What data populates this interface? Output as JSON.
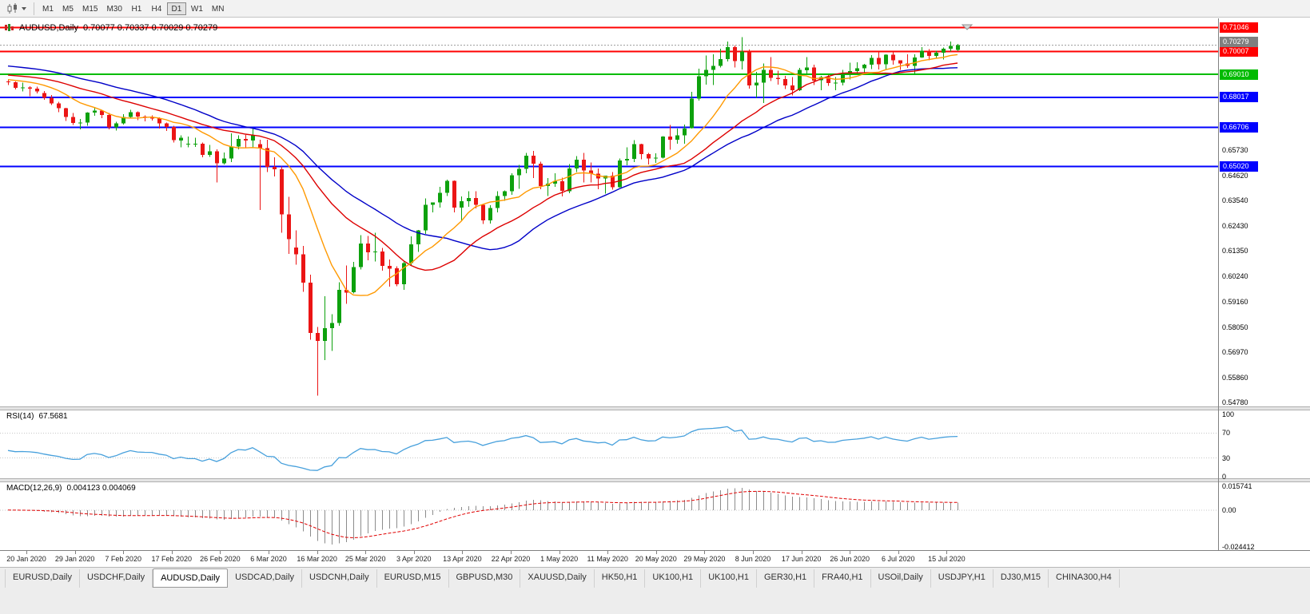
{
  "toolbar": {
    "timeframes": [
      "M1",
      "M5",
      "M15",
      "M30",
      "H1",
      "H4",
      "D1",
      "W1",
      "MN"
    ],
    "selected": "D1"
  },
  "window": {
    "title": "AUDUSD,Daily",
    "ohlc": "0.70077 0.70337 0.70029 0.70279"
  },
  "chart_data": {
    "type": "candlestick",
    "symbol": "AUDUSD",
    "timeframe": "Daily",
    "price_axis": {
      "min": 0.5457,
      "max": 0.7127,
      "plain_labels": [
        "0.65730",
        "0.64620",
        "0.63540",
        "0.62430",
        "0.61350",
        "0.60240",
        "0.59160",
        "0.58050",
        "0.56970",
        "0.55860",
        "0.54780"
      ]
    },
    "x_labels": [
      "20 Jan 2020",
      "29 Jan 2020",
      "7 Feb 2020",
      "17 Feb 2020",
      "26 Feb 2020",
      "6 Mar 2020",
      "16 Mar 2020",
      "25 Mar 2020",
      "3 Apr 2020",
      "13 Apr 2020",
      "22 Apr 2020",
      "1 May 2020",
      "11 May 2020",
      "20 May 2020",
      "29 May 2020",
      "8 Jun 2020",
      "17 Jun 2020",
      "26 Jun 2020",
      "6 Jul 2020",
      "15 Jul 2020"
    ],
    "colors": {
      "bull": "#0DA10D",
      "bear": "#EB1515"
    },
    "candles": [
      [
        0.6871,
        0.6879,
        0.6855,
        0.6867
      ],
      [
        0.6867,
        0.687,
        0.6836,
        0.6843
      ],
      [
        0.6843,
        0.6866,
        0.6828,
        0.6845
      ],
      [
        0.6845,
        0.685,
        0.6807,
        0.6839
      ],
      [
        0.6839,
        0.6848,
        0.6818,
        0.6827
      ],
      [
        0.682,
        0.6829,
        0.6791,
        0.68
      ],
      [
        0.68,
        0.6812,
        0.6769,
        0.6776
      ],
      [
        0.6776,
        0.6782,
        0.6737,
        0.6755
      ],
      [
        0.6755,
        0.6757,
        0.6699,
        0.6716
      ],
      [
        0.6716,
        0.6733,
        0.6682,
        0.669
      ],
      [
        0.669,
        0.6707,
        0.6663,
        0.6692
      ],
      [
        0.6692,
        0.6738,
        0.6678,
        0.6735
      ],
      [
        0.6735,
        0.6755,
        0.6722,
        0.6745
      ],
      [
        0.6745,
        0.6748,
        0.6711,
        0.6725
      ],
      [
        0.6725,
        0.6733,
        0.6662,
        0.6672
      ],
      [
        0.6672,
        0.6695,
        0.6658,
        0.6688
      ],
      [
        0.6688,
        0.6729,
        0.6683,
        0.6716
      ],
      [
        0.6716,
        0.6748,
        0.6711,
        0.6738
      ],
      [
        0.6738,
        0.6741,
        0.6702,
        0.6718
      ],
      [
        0.6718,
        0.6723,
        0.6698,
        0.6713
      ],
      [
        0.6713,
        0.6723,
        0.67,
        0.6712
      ],
      [
        0.6712,
        0.6714,
        0.6666,
        0.6688
      ],
      [
        0.6688,
        0.6692,
        0.6655,
        0.6673
      ],
      [
        0.6673,
        0.6678,
        0.6605,
        0.6615
      ],
      [
        0.6615,
        0.6637,
        0.6585,
        0.6627
      ],
      [
        0.66,
        0.6632,
        0.6585,
        0.6601
      ],
      [
        0.6601,
        0.6626,
        0.6586,
        0.6601
      ],
      [
        0.6601,
        0.6606,
        0.6542,
        0.6551
      ],
      [
        0.6551,
        0.6596,
        0.6543,
        0.6567
      ],
      [
        0.6567,
        0.6576,
        0.6433,
        0.6515
      ],
      [
        0.6515,
        0.6563,
        0.651,
        0.6537
      ],
      [
        0.6537,
        0.6645,
        0.652,
        0.6589
      ],
      [
        0.6589,
        0.6636,
        0.6576,
        0.6622
      ],
      [
        0.6622,
        0.6639,
        0.6585,
        0.6614
      ],
      [
        0.6614,
        0.667,
        0.6585,
        0.6639
      ],
      [
        0.6598,
        0.6618,
        0.6313,
        0.6582
      ],
      [
        0.6582,
        0.6618,
        0.6478,
        0.65
      ],
      [
        0.65,
        0.6541,
        0.6459,
        0.649
      ],
      [
        0.649,
        0.6501,
        0.6214,
        0.6294
      ],
      [
        0.6294,
        0.637,
        0.6123,
        0.6187
      ],
      [
        0.615,
        0.6225,
        0.6075,
        0.612
      ],
      [
        0.612,
        0.6157,
        0.5958,
        0.5998
      ],
      [
        0.5998,
        0.6032,
        0.5749,
        0.578
      ],
      [
        0.578,
        0.5805,
        0.5507,
        0.5745
      ],
      [
        0.5745,
        0.5938,
        0.5662,
        0.58
      ],
      [
        0.58,
        0.5861,
        0.5702,
        0.5822
      ],
      [
        0.5822,
        0.6,
        0.581,
        0.5966
      ],
      [
        0.5966,
        0.6072,
        0.5906,
        0.5955
      ],
      [
        0.5955,
        0.6088,
        0.5951,
        0.6065
      ],
      [
        0.6065,
        0.6203,
        0.6055,
        0.6167
      ],
      [
        0.6167,
        0.62,
        0.6095,
        0.613
      ],
      [
        0.613,
        0.6214,
        0.6089,
        0.6133
      ],
      [
        0.6133,
        0.6148,
        0.6049,
        0.607
      ],
      [
        0.607,
        0.6098,
        0.598,
        0.6059
      ],
      [
        0.6059,
        0.6069,
        0.5982,
        0.599
      ],
      [
        0.599,
        0.609,
        0.5967,
        0.6083
      ],
      [
        0.6083,
        0.6199,
        0.6073,
        0.6163
      ],
      [
        0.6163,
        0.6227,
        0.6131,
        0.6224
      ],
      [
        0.6224,
        0.6363,
        0.6209,
        0.6335
      ],
      [
        0.6335,
        0.6345,
        0.6303,
        0.6345
      ],
      [
        0.6345,
        0.6413,
        0.6324,
        0.6387
      ],
      [
        0.6387,
        0.6445,
        0.6374,
        0.6439
      ],
      [
        0.6439,
        0.6441,
        0.6302,
        0.6323
      ],
      [
        0.6323,
        0.6371,
        0.6264,
        0.6351
      ],
      [
        0.6351,
        0.6394,
        0.6327,
        0.6365
      ],
      [
        0.6365,
        0.6394,
        0.632,
        0.6335
      ],
      [
        0.6335,
        0.6339,
        0.6253,
        0.6268
      ],
      [
        0.6268,
        0.6333,
        0.6254,
        0.6322
      ],
      [
        0.6322,
        0.6394,
        0.6303,
        0.6374
      ],
      [
        0.6374,
        0.6398,
        0.6353,
        0.6394
      ],
      [
        0.6394,
        0.6472,
        0.6379,
        0.6464
      ],
      [
        0.6464,
        0.6508,
        0.6405,
        0.6492
      ],
      [
        0.6492,
        0.656,
        0.6472,
        0.6549
      ],
      [
        0.6549,
        0.657,
        0.6451,
        0.6513
      ],
      [
        0.6513,
        0.6522,
        0.6403,
        0.6417
      ],
      [
        0.6417,
        0.6452,
        0.6373,
        0.6427
      ],
      [
        0.6427,
        0.6473,
        0.6414,
        0.6437
      ],
      [
        0.6437,
        0.6453,
        0.6372,
        0.6395
      ],
      [
        0.6395,
        0.6512,
        0.6385,
        0.6493
      ],
      [
        0.6493,
        0.6547,
        0.6478,
        0.6531
      ],
      [
        0.6531,
        0.6561,
        0.6432,
        0.6485
      ],
      [
        0.6485,
        0.6519,
        0.6432,
        0.647
      ],
      [
        0.647,
        0.6493,
        0.6403,
        0.645
      ],
      [
        0.645,
        0.6462,
        0.6383,
        0.6462
      ],
      [
        0.6462,
        0.6478,
        0.6402,
        0.6412
      ],
      [
        0.6412,
        0.6536,
        0.641,
        0.6527
      ],
      [
        0.6527,
        0.6585,
        0.6507,
        0.6534
      ],
      [
        0.6534,
        0.6616,
        0.6521,
        0.6598
      ],
      [
        0.6598,
        0.66,
        0.6533,
        0.6556
      ],
      [
        0.6556,
        0.656,
        0.651,
        0.6536
      ],
      [
        0.6536,
        0.6559,
        0.6518,
        0.654
      ],
      [
        0.654,
        0.6634,
        0.6536,
        0.6632
      ],
      [
        0.6632,
        0.6681,
        0.6574,
        0.6618
      ],
      [
        0.6618,
        0.6666,
        0.6601,
        0.6637
      ],
      [
        0.6637,
        0.6684,
        0.6601,
        0.6667
      ],
      [
        0.6667,
        0.6826,
        0.6667,
        0.6796
      ],
      [
        0.6796,
        0.6926,
        0.6787,
        0.6893
      ],
      [
        0.6893,
        0.6983,
        0.6857,
        0.692
      ],
      [
        0.692,
        0.6988,
        0.6855,
        0.6938
      ],
      [
        0.6938,
        0.7013,
        0.6932,
        0.6967
      ],
      [
        0.6967,
        0.7043,
        0.6958,
        0.7019
      ],
      [
        0.7019,
        0.7027,
        0.6931,
        0.6959
      ],
      [
        0.6959,
        0.7063,
        0.6922,
        0.7001
      ],
      [
        0.7001,
        0.701,
        0.684,
        0.6854
      ],
      [
        0.6854,
        0.6913,
        0.6799,
        0.6865
      ],
      [
        0.6865,
        0.6948,
        0.6777,
        0.6921
      ],
      [
        0.6921,
        0.6977,
        0.6873,
        0.6886
      ],
      [
        0.6886,
        0.6917,
        0.6856,
        0.6881
      ],
      [
        0.6881,
        0.6894,
        0.6837,
        0.6853
      ],
      [
        0.6853,
        0.689,
        0.681,
        0.6833
      ],
      [
        0.6833,
        0.6929,
        0.6829,
        0.692
      ],
      [
        0.692,
        0.6976,
        0.6903,
        0.6932
      ],
      [
        0.6932,
        0.6944,
        0.6855,
        0.6875
      ],
      [
        0.6875,
        0.6894,
        0.6832,
        0.689
      ],
      [
        0.689,
        0.6899,
        0.6851,
        0.6864
      ],
      [
        0.6864,
        0.689,
        0.6832,
        0.6866
      ],
      [
        0.6866,
        0.6921,
        0.6853,
        0.6903
      ],
      [
        0.6903,
        0.6952,
        0.688,
        0.6916
      ],
      [
        0.6916,
        0.6954,
        0.6901,
        0.6928
      ],
      [
        0.6928,
        0.6946,
        0.6911,
        0.6944
      ],
      [
        0.6944,
        0.6985,
        0.6924,
        0.6973
      ],
      [
        0.6973,
        0.6998,
        0.6922,
        0.6945
      ],
      [
        0.6945,
        0.6988,
        0.6921,
        0.6986
      ],
      [
        0.6986,
        0.6998,
        0.6943,
        0.6962
      ],
      [
        0.6962,
        0.6963,
        0.6921,
        0.6948
      ],
      [
        0.6948,
        0.6989,
        0.6929,
        0.6938
      ],
      [
        0.6938,
        0.6989,
        0.6902,
        0.6975
      ],
      [
        0.6975,
        0.7019,
        0.6972,
        0.7004
      ],
      [
        0.7004,
        0.7011,
        0.6963,
        0.6982
      ],
      [
        0.6982,
        0.7004,
        0.6972,
        0.6996
      ],
      [
        0.6996,
        0.7017,
        0.6966,
        0.7013
      ],
      [
        0.7013,
        0.7044,
        0.7001,
        0.7024
      ],
      [
        0.70077,
        0.70337,
        0.70029,
        0.70279
      ]
    ],
    "moving_averages": [
      {
        "name": "slow",
        "type": "sma",
        "period": 30,
        "seed": 0.694,
        "color": "#0000C8"
      },
      {
        "name": "medium",
        "type": "sma",
        "period": 21,
        "seed": 0.69,
        "color": "#DD0000"
      },
      {
        "name": "fast",
        "type": "sma",
        "period": 10,
        "seed": 0.688,
        "color": "#FF9900"
      }
    ],
    "horizontal_lines": [
      {
        "price": 0.71046,
        "label": "0.71046",
        "color": "#FF0000"
      },
      {
        "price": 0.70007,
        "label": "0.70007",
        "color": "#FF0000"
      },
      {
        "price": 0.6901,
        "label": "0.69010",
        "color": "#00BB00"
      },
      {
        "price": 0.68017,
        "label": "0.68017",
        "color": "#0000FF"
      },
      {
        "price": 0.66706,
        "label": "0.66706",
        "color": "#0000FF"
      },
      {
        "price": 0.6502,
        "label": "0.65020",
        "color": "#0000FF"
      }
    ],
    "bid": {
      "price": 0.70279,
      "label": "0.70279",
      "color": "#7F7F7F"
    },
    "rsi": {
      "label": "RSI(14)",
      "value": "67.5681",
      "period": 14,
      "seed_gain": 0.0016,
      "seed_loss": 0.0022,
      "levels": [
        100,
        70,
        30,
        0
      ],
      "color": "#47A0DC"
    },
    "macd": {
      "label": "MACD(12,26,9)",
      "value": "0.004123 0.004069",
      "fast": 12,
      "slow": 26,
      "signal": 9,
      "axis_labels": [
        "0.015741",
        "0.00",
        "-0.024412"
      ],
      "axis_max": 0.015741,
      "axis_min": -0.024412,
      "hist_color": "#8C8C8C",
      "signal_color": "#E00000"
    }
  },
  "tabs": {
    "items": [
      {
        "label": "EURUSD,Daily",
        "active": false
      },
      {
        "label": "USDCHF,Daily",
        "active": false
      },
      {
        "label": "AUDUSD,Daily",
        "active": true
      },
      {
        "label": "USDCAD,Daily",
        "active": false
      },
      {
        "label": "USDCNH,Daily",
        "active": false
      },
      {
        "label": "EURUSD,M15",
        "active": false
      },
      {
        "label": "GBPUSD,M30",
        "active": false
      },
      {
        "label": "XAUUSD,Daily",
        "active": false
      },
      {
        "label": "HK50,H1",
        "active": false
      },
      {
        "label": "UK100,H1",
        "active": false
      },
      {
        "label": "UK100,H1",
        "active": false
      },
      {
        "label": "GER30,H1",
        "active": false
      },
      {
        "label": "FRA40,H1",
        "active": false
      },
      {
        "label": "USOil,Daily",
        "active": false
      },
      {
        "label": "USDJPY,H1",
        "active": false
      },
      {
        "label": "DJ30,M15",
        "active": false
      },
      {
        "label": "CHINA300,H4",
        "active": false
      }
    ]
  }
}
